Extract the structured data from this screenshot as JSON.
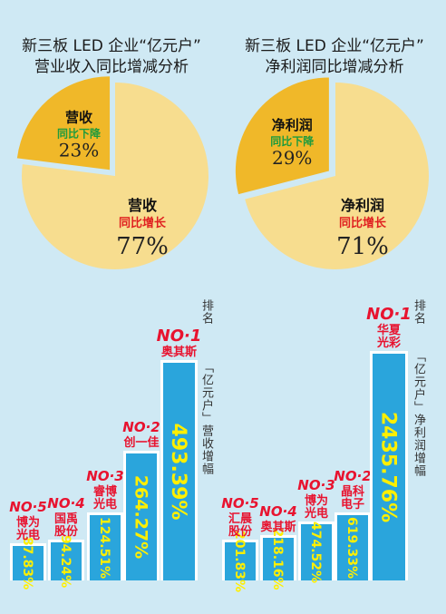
{
  "chart_data": [
    {
      "type": "pie",
      "title": [
        "新三板 LED 企业“亿元户”",
        "营业收入同比增减分析"
      ],
      "slices": [
        {
          "name": "营收",
          "sub": "同比下降",
          "value": 23,
          "label": "23%",
          "color": "#f0b829",
          "sub_color": "#1e9b3d",
          "exploded": true
        },
        {
          "name": "营收",
          "sub": "同比增长",
          "value": 77,
          "label": "77%",
          "color": "#f7dd8f",
          "sub_color": "#e02020",
          "exploded": false
        }
      ]
    },
    {
      "type": "pie",
      "title": [
        "新三板 LED 企业“亿元户”",
        "净利润同比增减分析"
      ],
      "slices": [
        {
          "name": "净利润",
          "sub": "同比下降",
          "value": 29,
          "label": "29%",
          "color": "#f0b829",
          "sub_color": "#1e9b3d",
          "exploded": true
        },
        {
          "name": "净利润",
          "sub": "同比增长",
          "value": 71,
          "label": "71%",
          "color": "#f7dd8f",
          "sub_color": "#e02020",
          "exploded": false
        }
      ]
    },
    {
      "type": "bar",
      "legend": "排名",
      "ylabel": "「亿元户」营收增幅",
      "categories": [
        "博为光电",
        "国禹股份",
        "睿博光电",
        "创一佳",
        "奥其斯"
      ],
      "ranks": [
        "NO·5",
        "NO·4",
        "NO·3",
        "NO·2",
        "NO·1"
      ],
      "values": [
        87.83,
        94.24,
        124.51,
        264.27,
        493.39
      ],
      "labels": [
        "87.83%",
        "94.24%",
        "124.51%",
        "264.27%",
        "493.39%"
      ],
      "bar_color": "#2aa5dc",
      "label_color": "#ffef00"
    },
    {
      "type": "bar",
      "legend": "排名",
      "ylabel": "「亿元户」净利润增幅",
      "categories": [
        "汇晨股份",
        "奥其斯",
        "博为光电",
        "晶科电子",
        "华夏光彩"
      ],
      "ranks": [
        "NO·5",
        "NO·4",
        "NO·3",
        "NO·2",
        "NO·1"
      ],
      "values": [
        201.83,
        218.16,
        474.52,
        619.33,
        2435.76
      ],
      "labels": [
        "201.83%",
        "218.16%",
        "474.52%",
        "619.33%",
        "2435.76%"
      ],
      "bar_color": "#2aa5dc",
      "label_color": "#ffef00"
    }
  ]
}
